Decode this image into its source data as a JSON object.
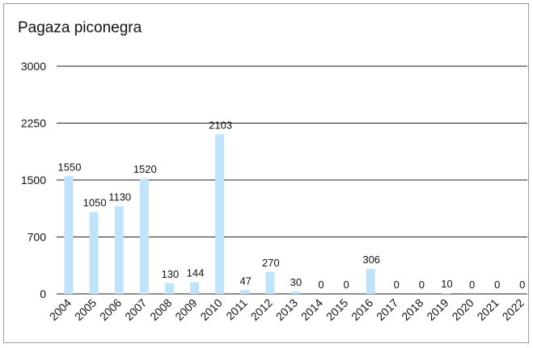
{
  "chart_data": {
    "type": "bar",
    "title": "Pagaza piconegra",
    "xlabel": "",
    "ylabel": "",
    "categories": [
      "2004",
      "2005",
      "2006",
      "2007",
      "2008",
      "2009",
      "2010",
      "2011",
      "2012",
      "2013",
      "2014",
      "2015",
      "2016",
      "2017",
      "2018",
      "2019",
      "2020",
      "2021",
      "2022"
    ],
    "values": [
      1550,
      1050,
      1130,
      1520,
      130,
      144,
      2103,
      47,
      270,
      30,
      0,
      0,
      306,
      0,
      0,
      10,
      0,
      0,
      0
    ],
    "y_ticks": [
      0,
      700,
      1500,
      2250,
      3000
    ],
    "ylim": [
      0,
      3000
    ],
    "grid": true,
    "legend": "none",
    "bar_color": "#bfe3fa",
    "grid_color": "#222222"
  }
}
